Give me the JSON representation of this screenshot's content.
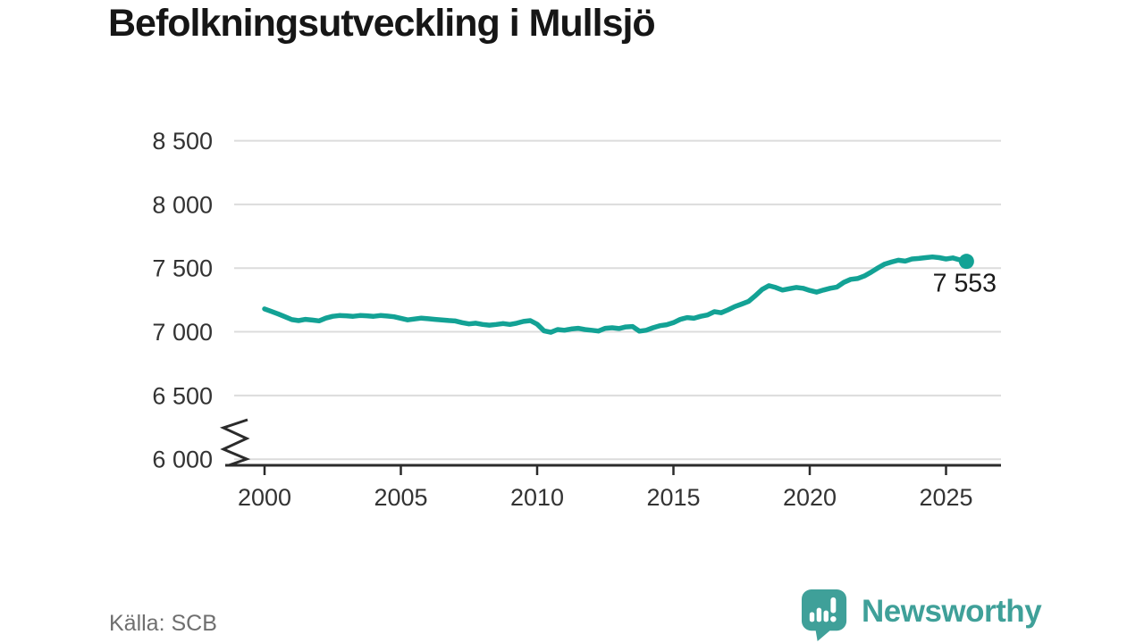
{
  "title": "Befolkningsutveckling i Mullsjö",
  "source": "Källa: SCB",
  "logo": {
    "text": "Newsworthy"
  },
  "colors": {
    "line": "#13a295",
    "grid": "#dcdcdc",
    "axis": "#2b2b2b",
    "tick_label": "#333333",
    "annotation": "#1a1a1a",
    "logo": "#3fa099",
    "logo_bars": "#ffffff"
  },
  "chart_data": {
    "type": "line",
    "title": "Befolkningsutveckling i Mullsjö",
    "series_name": "Befolkningsutveckling i Mullsjö",
    "x": [
      2000,
      2000.25,
      2000.5,
      2000.75,
      2001,
      2001.25,
      2001.5,
      2001.75,
      2002,
      2002.25,
      2002.5,
      2002.75,
      2003,
      2003.25,
      2003.5,
      2003.75,
      2004,
      2004.25,
      2004.5,
      2004.75,
      2005,
      2005.25,
      2005.5,
      2005.75,
      2006,
      2006.25,
      2006.5,
      2006.75,
      2007,
      2007.25,
      2007.5,
      2007.75,
      2008,
      2008.25,
      2008.5,
      2008.75,
      2009,
      2009.25,
      2009.5,
      2009.75,
      2010,
      2010.25,
      2010.5,
      2010.75,
      2011,
      2011.25,
      2011.5,
      2011.75,
      2012,
      2012.25,
      2012.5,
      2012.75,
      2013,
      2013.25,
      2013.5,
      2013.75,
      2014,
      2014.25,
      2014.5,
      2014.75,
      2015,
      2015.25,
      2015.5,
      2015.75,
      2016,
      2016.25,
      2016.5,
      2016.75,
      2017,
      2017.25,
      2017.5,
      2017.75,
      2018,
      2018.25,
      2018.5,
      2018.75,
      2019,
      2019.25,
      2019.5,
      2019.75,
      2020,
      2020.25,
      2020.5,
      2020.75,
      2021,
      2021.25,
      2021.5,
      2021.75,
      2022,
      2022.25,
      2022.5,
      2022.75,
      2023,
      2023.25,
      2023.5,
      2023.75,
      2024,
      2024.25,
      2024.5,
      2024.75,
      2025,
      2025.25,
      2025.5,
      2025.75
    ],
    "values": [
      7180,
      7160,
      7140,
      7118,
      7096,
      7088,
      7098,
      7092,
      7086,
      7108,
      7122,
      7128,
      7126,
      7122,
      7128,
      7126,
      7122,
      7128,
      7124,
      7118,
      7106,
      7094,
      7101,
      7108,
      7103,
      7098,
      7094,
      7089,
      7085,
      7072,
      7062,
      7068,
      7058,
      7052,
      7058,
      7065,
      7058,
      7068,
      7082,
      7088,
      7060,
      7008,
      6996,
      7018,
      7012,
      7022,
      7028,
      7018,
      7012,
      7006,
      7028,
      7032,
      7026,
      7038,
      7042,
      7005,
      7012,
      7032,
      7048,
      7056,
      7072,
      7098,
      7112,
      7106,
      7122,
      7132,
      7158,
      7150,
      7172,
      7198,
      7218,
      7238,
      7282,
      7332,
      7362,
      7348,
      7328,
      7338,
      7348,
      7342,
      7325,
      7312,
      7328,
      7342,
      7352,
      7388,
      7412,
      7418,
      7438,
      7468,
      7502,
      7532,
      7548,
      7562,
      7555,
      7572,
      7576,
      7582,
      7588,
      7582,
      7572,
      7580,
      7565,
      7553
    ],
    "end_label": "7 553",
    "end_value": 7553,
    "y_ticks": [
      "8 500",
      "8 000",
      "7 500",
      "7 000",
      "6 500",
      "6 000"
    ],
    "y_tick_values": [
      8500,
      8000,
      7500,
      7000,
      6500,
      6000
    ],
    "x_ticks": [
      "2000",
      "2005",
      "2010",
      "2015",
      "2020",
      "2025"
    ],
    "x_tick_values": [
      2000,
      2005,
      2010,
      2015,
      2020,
      2025
    ],
    "ylim": [
      6000,
      8750
    ],
    "xlim": [
      2000,
      2027
    ],
    "axis_break": true,
    "grid": true,
    "legend": false
  }
}
